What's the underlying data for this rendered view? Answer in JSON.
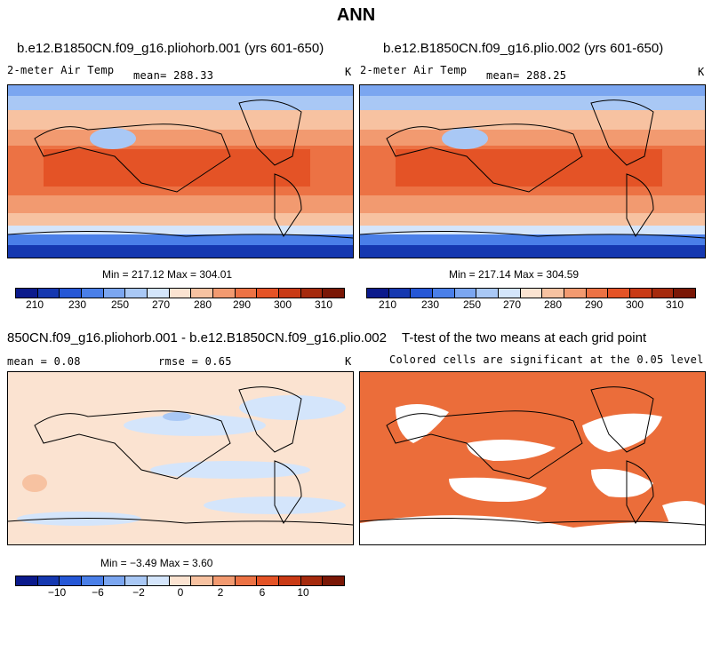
{
  "figure": {
    "title": "ANN"
  },
  "panels": [
    {
      "title": "b.e12.B1850CN.f09_g16.pliohorb.001 (yrs 601-650)",
      "left_label": "2-meter Air Temp",
      "center_label": "mean= 288.33",
      "right_label": "K",
      "minmax": "Min = 217.12 Max = 304.01"
    },
    {
      "title": "b.e12.B1850CN.f09_g16.plio.002 (yrs 601-650)",
      "left_label": "2-meter Air Temp",
      "center_label": "mean= 288.25",
      "right_label": "K",
      "minmax": "Min = 217.14 Max = 304.59"
    },
    {
      "title": "850CN.f09_g16.pliohorb.001 - b.e12.B1850CN.f09_g16.plio.002",
      "left_label": "mean =    0.08",
      "center_label": "rmse =    0.65",
      "right_label": "K",
      "minmax": "Min =  −3.49 Max =    3.60"
    },
    {
      "title": "T-test of the two means at each grid point",
      "subtitle": "Colored cells are significant at the 0.05 level"
    }
  ],
  "colorbars": {
    "temperature": {
      "labels": [
        "210",
        "230",
        "250",
        "270",
        "280",
        "290",
        "300",
        "310"
      ],
      "colors": [
        "#0b1a8c",
        "#1538b0",
        "#2557d6",
        "#4a7fe8",
        "#7ba6f0",
        "#a9c8f5",
        "#d4e5fb",
        "#fbe3d1",
        "#f7c2a1",
        "#f29a70",
        "#ec7244",
        "#e45326",
        "#c93a15",
        "#a52a0d",
        "#7a1706"
      ]
    },
    "difference": {
      "labels": [
        "−10",
        "−6",
        "−2",
        "0",
        "2",
        "6",
        "10"
      ],
      "colors": [
        "#0b1a8c",
        "#1538b0",
        "#2557d6",
        "#4a7fe8",
        "#7ba6f0",
        "#a9c8f5",
        "#d4e5fb",
        "#fbe3d1",
        "#f7c2a1",
        "#f29a70",
        "#ec7244",
        "#e45326",
        "#c93a15",
        "#a52a0d",
        "#7a1706"
      ]
    }
  },
  "colors": {
    "significant": "#eb6d3a"
  }
}
